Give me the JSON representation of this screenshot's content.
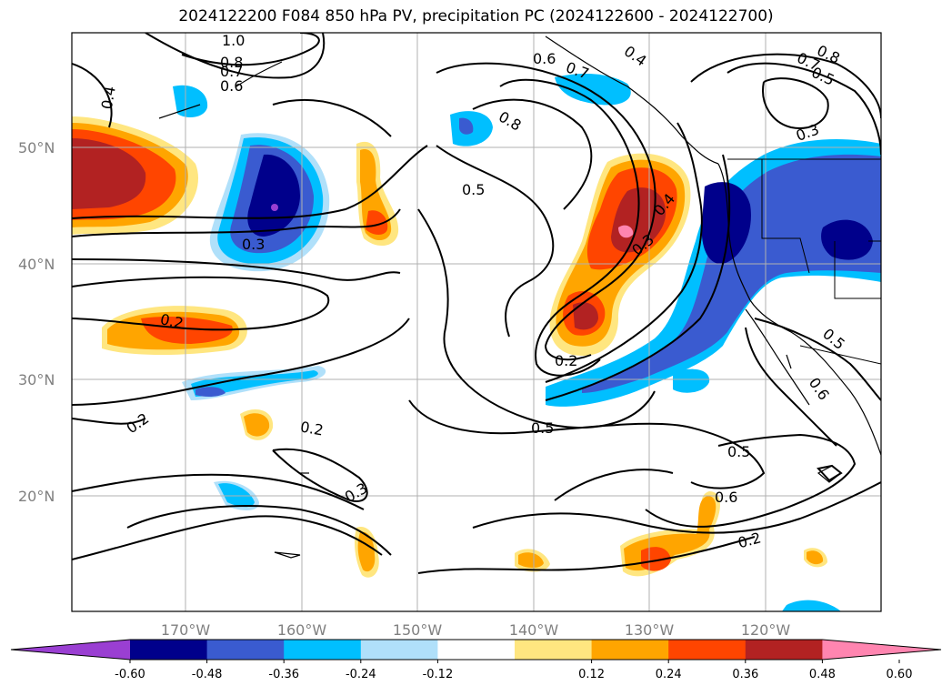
{
  "title": "2024122200 F084 850 hPa PV, precipitation PC (2024122600 - 2024122700)",
  "map": {
    "lat_labels": [
      "50°N",
      "40°N",
      "30°N",
      "20°N"
    ],
    "lon_labels": [
      "170°W",
      "160°W",
      "150°W",
      "140°W",
      "130°W",
      "120°W"
    ],
    "contour_labels": [
      "1.0",
      "0.8",
      "0.7",
      "0.6",
      "0.4",
      "0.6",
      "0.7",
      "0.4",
      "0.8",
      "0.5",
      "0.4",
      "0.3",
      "0.3",
      "0.2",
      "0.2",
      "0.2",
      "0.2",
      "0.5",
      "0.5",
      "0.6",
      "0.2",
      "0.3",
      "0.8",
      "0.7",
      "0.5",
      "0.3",
      "0.5",
      "0.6"
    ]
  },
  "colorbar": {
    "ticks": [
      "-0.60",
      "-0.48",
      "-0.36",
      "-0.24",
      "-0.12",
      "0.12",
      "0.24",
      "0.36",
      "0.48",
      "0.60"
    ],
    "colors": [
      "#9a3fd2",
      "#00008b",
      "#3a5bd0",
      "#00bfff",
      "#b0e0fa",
      "#ffffff",
      "#ffe680",
      "#ffa500",
      "#ff4500",
      "#b22222",
      "#ff85b0"
    ]
  }
}
